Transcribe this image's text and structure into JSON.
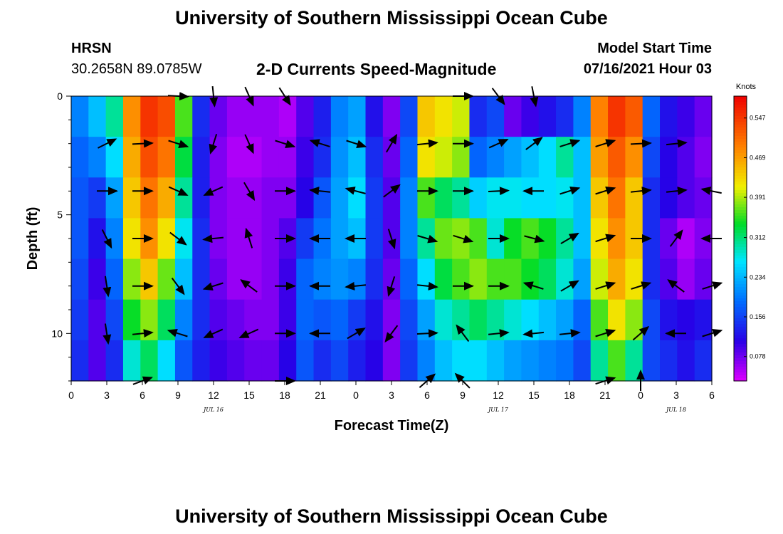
{
  "header": {
    "title": "University of Southern Mississippi Ocean Cube",
    "station": "HRSN",
    "coordinates": "30.2658N  89.0785W",
    "subtitle": "2-D Currents Speed-Magnitude",
    "model_start_label": "Model Start Time",
    "model_start_value": "07/16/2021 Hour 03"
  },
  "footer": {
    "title": "University of Southern Mississippi Ocean Cube"
  },
  "chart_data": {
    "type": "heatmap",
    "xlabel": "Forecast Time(Z)",
    "ylabel": "Depth (ft)",
    "colorbar_label": "Knots",
    "x_hours": [
      0,
      3,
      6,
      9,
      12,
      15,
      18,
      21,
      24,
      27,
      30,
      33,
      36,
      39,
      42,
      45,
      48,
      51,
      54
    ],
    "x_tick_labels": [
      "0",
      "3",
      "6",
      "9",
      "12",
      "15",
      "18",
      "21",
      "0",
      "3",
      "6",
      "9",
      "12",
      "15",
      "18",
      "21",
      "0",
      "3",
      "6"
    ],
    "date_labels": [
      {
        "label": "JUL 16",
        "hour": 12
      },
      {
        "label": "JUL 17",
        "hour": 36
      },
      {
        "label": "JUL 18",
        "hour": 51
      }
    ],
    "y_ticks": [
      0,
      5,
      10
    ],
    "y_tick_labels": [
      "0",
      "5",
      "10"
    ],
    "ylim": [
      0,
      12
    ],
    "xlim": [
      0,
      54
    ],
    "colorbar_ticks": [
      0.078,
      0.156,
      0.234,
      0.312,
      0.391,
      0.469,
      0.547
    ],
    "colorbar_tick_labels": [
      "0.078",
      "0.156",
      "0.234",
      "0.312",
      "0.391",
      "0.469",
      "0.547"
    ],
    "colorbar_range": [
      0.03,
      0.59
    ],
    "depth_levels": [
      0,
      2,
      4,
      6,
      8,
      10,
      12
    ],
    "time_hours": [
      0,
      1.5,
      3,
      4.5,
      6,
      7.5,
      9,
      10.5,
      12,
      13.5,
      15,
      16.5,
      18,
      19.5,
      21,
      22.5,
      24,
      25.5,
      27,
      28.5,
      30,
      31.5,
      33,
      34.5,
      36,
      37.5,
      39,
      40.5,
      42,
      43.5,
      45,
      46.5,
      48,
      49.5,
      51,
      52.5,
      54
    ],
    "speed_knots": [
      [
        0.2,
        0.24,
        0.3,
        0.48,
        0.55,
        0.53,
        0.36,
        0.14,
        0.08,
        0.06,
        0.06,
        0.06,
        0.05,
        0.09,
        0.13,
        0.2,
        0.22,
        0.12,
        0.07,
        0.16,
        0.44,
        0.42,
        0.4,
        0.14,
        0.16,
        0.08,
        0.1,
        0.12,
        0.14,
        0.2,
        0.49,
        0.55,
        0.52,
        0.18,
        0.12,
        0.1,
        0.08
      ],
      [
        0.18,
        0.2,
        0.26,
        0.46,
        0.53,
        0.5,
        0.33,
        0.13,
        0.07,
        0.05,
        0.05,
        0.06,
        0.06,
        0.1,
        0.14,
        0.21,
        0.24,
        0.14,
        0.08,
        0.18,
        0.42,
        0.4,
        0.38,
        0.18,
        0.2,
        0.22,
        0.24,
        0.26,
        0.3,
        0.24,
        0.47,
        0.52,
        0.48,
        0.16,
        0.11,
        0.09,
        0.07
      ],
      [
        0.17,
        0.15,
        0.22,
        0.44,
        0.5,
        0.46,
        0.3,
        0.13,
        0.07,
        0.06,
        0.06,
        0.07,
        0.07,
        0.11,
        0.17,
        0.22,
        0.26,
        0.15,
        0.09,
        0.2,
        0.36,
        0.32,
        0.3,
        0.25,
        0.27,
        0.27,
        0.26,
        0.26,
        0.27,
        0.24,
        0.44,
        0.5,
        0.44,
        0.14,
        0.11,
        0.09,
        0.08
      ],
      [
        0.17,
        0.12,
        0.2,
        0.42,
        0.48,
        0.42,
        0.27,
        0.14,
        0.07,
        0.06,
        0.06,
        0.07,
        0.09,
        0.15,
        0.19,
        0.22,
        0.24,
        0.15,
        0.09,
        0.2,
        0.3,
        0.37,
        0.38,
        0.36,
        0.28,
        0.34,
        0.36,
        0.34,
        0.3,
        0.24,
        0.42,
        0.48,
        0.44,
        0.14,
        0.08,
        0.05,
        0.07
      ],
      [
        0.16,
        0.1,
        0.18,
        0.38,
        0.44,
        0.37,
        0.24,
        0.14,
        0.08,
        0.06,
        0.06,
        0.07,
        0.1,
        0.18,
        0.2,
        0.21,
        0.2,
        0.14,
        0.08,
        0.18,
        0.26,
        0.33,
        0.36,
        0.38,
        0.36,
        0.36,
        0.34,
        0.32,
        0.28,
        0.22,
        0.4,
        0.46,
        0.42,
        0.14,
        0.09,
        0.06,
        0.08
      ],
      [
        0.15,
        0.09,
        0.16,
        0.34,
        0.38,
        0.32,
        0.2,
        0.14,
        0.09,
        0.08,
        0.07,
        0.07,
        0.1,
        0.18,
        0.17,
        0.18,
        0.15,
        0.12,
        0.07,
        0.16,
        0.22,
        0.28,
        0.3,
        0.32,
        0.3,
        0.28,
        0.26,
        0.24,
        0.22,
        0.18,
        0.36,
        0.42,
        0.38,
        0.16,
        0.12,
        0.11,
        0.12
      ],
      [
        0.14,
        0.09,
        0.14,
        0.28,
        0.32,
        0.26,
        0.17,
        0.13,
        0.1,
        0.09,
        0.08,
        0.08,
        0.11,
        0.17,
        0.14,
        0.16,
        0.13,
        0.11,
        0.07,
        0.15,
        0.2,
        0.24,
        0.26,
        0.26,
        0.24,
        0.22,
        0.21,
        0.2,
        0.19,
        0.16,
        0.3,
        0.36,
        0.3,
        0.16,
        0.14,
        0.12,
        0.14
      ]
    ],
    "vectors": [
      {
        "hour": 3,
        "depth": 2,
        "dx": 0.9,
        "dy": -0.45
      },
      {
        "hour": 3,
        "depth": 4,
        "dx": 1,
        "dy": 0
      },
      {
        "hour": 3,
        "depth": 6,
        "dx": 0.45,
        "dy": 0.9
      },
      {
        "hour": 3,
        "depth": 8,
        "dx": 0.15,
        "dy": 1
      },
      {
        "hour": 3,
        "depth": 10,
        "dx": 0.15,
        "dy": 1
      },
      {
        "hour": 6,
        "depth": 2,
        "dx": 1,
        "dy": -0.05
      },
      {
        "hour": 6,
        "depth": 4,
        "dx": 1,
        "dy": 0
      },
      {
        "hour": 6,
        "depth": 6,
        "dx": 1,
        "dy": 0
      },
      {
        "hour": 6,
        "depth": 8,
        "dx": 1,
        "dy": 0
      },
      {
        "hour": 6,
        "depth": 10,
        "dx": 1,
        "dy": -0.1
      },
      {
        "hour": 6,
        "depth": 12,
        "dx": 0.95,
        "dy": -0.35
      },
      {
        "hour": 9,
        "depth": 0,
        "dx": 1,
        "dy": 0.05
      },
      {
        "hour": 9,
        "depth": 2,
        "dx": 0.95,
        "dy": 0.3
      },
      {
        "hour": 9,
        "depth": 4,
        "dx": 0.9,
        "dy": 0.4
      },
      {
        "hour": 9,
        "depth": 6,
        "dx": 0.8,
        "dy": 0.6
      },
      {
        "hour": 9,
        "depth": 8,
        "dx": 0.6,
        "dy": 0.8
      },
      {
        "hour": 9,
        "depth": 10,
        "dx": -0.95,
        "dy": -0.3
      },
      {
        "hour": 12,
        "depth": 0,
        "dx": 0.1,
        "dy": 1
      },
      {
        "hour": 12,
        "depth": 2,
        "dx": -0.3,
        "dy": 0.95
      },
      {
        "hour": 12,
        "depth": 4,
        "dx": -0.9,
        "dy": 0.4
      },
      {
        "hour": 12,
        "depth": 6,
        "dx": -1,
        "dy": 0.1
      },
      {
        "hour": 12,
        "depth": 8,
        "dx": -0.95,
        "dy": 0.3
      },
      {
        "hour": 12,
        "depth": 10,
        "dx": -0.9,
        "dy": 0.4
      },
      {
        "hour": 15,
        "depth": 0,
        "dx": 0.4,
        "dy": 0.9
      },
      {
        "hour": 15,
        "depth": 2,
        "dx": 0.4,
        "dy": 0.9
      },
      {
        "hour": 15,
        "depth": 4,
        "dx": 0.5,
        "dy": 0.85
      },
      {
        "hour": 15,
        "depth": 6,
        "dx": -0.3,
        "dy": -0.95
      },
      {
        "hour": 15,
        "depth": 8,
        "dx": -0.8,
        "dy": -0.6
      },
      {
        "hour": 15,
        "depth": 10,
        "dx": -0.9,
        "dy": 0.4
      },
      {
        "hour": 18,
        "depth": 0,
        "dx": 0.55,
        "dy": 0.85
      },
      {
        "hour": 18,
        "depth": 2,
        "dx": 0.95,
        "dy": 0.3
      },
      {
        "hour": 18,
        "depth": 4,
        "dx": 1,
        "dy": 0
      },
      {
        "hour": 18,
        "depth": 6,
        "dx": 1,
        "dy": 0
      },
      {
        "hour": 18,
        "depth": 8,
        "dx": 1,
        "dy": 0
      },
      {
        "hour": 18,
        "depth": 10,
        "dx": 1,
        "dy": 0
      },
      {
        "hour": 18,
        "depth": 12,
        "dx": 1,
        "dy": 0
      },
      {
        "hour": 21,
        "depth": 2,
        "dx": -0.95,
        "dy": -0.3
      },
      {
        "hour": 21,
        "depth": 4,
        "dx": -1,
        "dy": -0.1
      },
      {
        "hour": 21,
        "depth": 6,
        "dx": -1,
        "dy": 0
      },
      {
        "hour": 21,
        "depth": 8,
        "dx": -1,
        "dy": 0
      },
      {
        "hour": 21,
        "depth": 10,
        "dx": -1,
        "dy": 0
      },
      {
        "hour": 24,
        "depth": 2,
        "dx": 0.95,
        "dy": 0.3
      },
      {
        "hour": 24,
        "depth": 4,
        "dx": -0.95,
        "dy": -0.25
      },
      {
        "hour": 24,
        "depth": 6,
        "dx": -1,
        "dy": 0
      },
      {
        "hour": 24,
        "depth": 8,
        "dx": -1,
        "dy": 0.1
      },
      {
        "hour": 24,
        "depth": 10,
        "dx": 0.85,
        "dy": -0.5
      },
      {
        "hour": 27,
        "depth": 2,
        "dx": 0.5,
        "dy": -0.85
      },
      {
        "hour": 27,
        "depth": 4,
        "dx": 0.8,
        "dy": -0.6
      },
      {
        "hour": 27,
        "depth": 6,
        "dx": 0.3,
        "dy": 0.95
      },
      {
        "hour": 27,
        "depth": 8,
        "dx": -0.3,
        "dy": 0.95
      },
      {
        "hour": 27,
        "depth": 10,
        "dx": -0.6,
        "dy": 0.8
      },
      {
        "hour": 30,
        "depth": 2,
        "dx": 1,
        "dy": -0.1
      },
      {
        "hour": 30,
        "depth": 4,
        "dx": 1,
        "dy": 0
      },
      {
        "hour": 30,
        "depth": 6,
        "dx": 1,
        "dy": 0.3
      },
      {
        "hour": 30,
        "depth": 8,
        "dx": 1,
        "dy": 0.1
      },
      {
        "hour": 30,
        "depth": 10,
        "dx": 1,
        "dy": -0.05
      },
      {
        "hour": 30,
        "depth": 12,
        "dx": 0.75,
        "dy": -0.65
      },
      {
        "hour": 33,
        "depth": 0,
        "dx": 1,
        "dy": 0
      },
      {
        "hour": 33,
        "depth": 2,
        "dx": 1,
        "dy": 0
      },
      {
        "hour": 33,
        "depth": 4,
        "dx": 1,
        "dy": 0
      },
      {
        "hour": 33,
        "depth": 6,
        "dx": 0.95,
        "dy": 0.3
      },
      {
        "hour": 33,
        "depth": 8,
        "dx": 1,
        "dy": 0
      },
      {
        "hour": 33,
        "depth": 10,
        "dx": -0.6,
        "dy": -0.8
      },
      {
        "hour": 33,
        "depth": 12,
        "dx": -0.7,
        "dy": -0.7
      },
      {
        "hour": 36,
        "depth": 0,
        "dx": 0.6,
        "dy": 0.8
      },
      {
        "hour": 36,
        "depth": 2,
        "dx": 0.9,
        "dy": -0.4
      },
      {
        "hour": 36,
        "depth": 4,
        "dx": 1,
        "dy": -0.05
      },
      {
        "hour": 36,
        "depth": 6,
        "dx": 1,
        "dy": 0
      },
      {
        "hour": 36,
        "depth": 8,
        "dx": 1,
        "dy": 0
      },
      {
        "hour": 36,
        "depth": 10,
        "dx": 1,
        "dy": -0.1
      },
      {
        "hour": 39,
        "depth": 0,
        "dx": 0.2,
        "dy": 1
      },
      {
        "hour": 39,
        "depth": 2,
        "dx": 0.8,
        "dy": -0.6
      },
      {
        "hour": 39,
        "depth": 4,
        "dx": -1,
        "dy": 0
      },
      {
        "hour": 39,
        "depth": 6,
        "dx": 0.95,
        "dy": 0.25
      },
      {
        "hour": 39,
        "depth": 8,
        "dx": -0.95,
        "dy": -0.3
      },
      {
        "hour": 39,
        "depth": 10,
        "dx": -1,
        "dy": 0.1
      },
      {
        "hour": 42,
        "depth": 2,
        "dx": 0.95,
        "dy": -0.3
      },
      {
        "hour": 42,
        "depth": 4,
        "dx": 0.95,
        "dy": -0.3
      },
      {
        "hour": 42,
        "depth": 6,
        "dx": 0.85,
        "dy": -0.5
      },
      {
        "hour": 42,
        "depth": 8,
        "dx": 0.85,
        "dy": -0.5
      },
      {
        "hour": 42,
        "depth": 10,
        "dx": 1,
        "dy": -0.1
      },
      {
        "hour": 45,
        "depth": 2,
        "dx": 0.95,
        "dy": -0.3
      },
      {
        "hour": 45,
        "depth": 4,
        "dx": 0.95,
        "dy": -0.3
      },
      {
        "hour": 45,
        "depth": 6,
        "dx": 0.95,
        "dy": -0.3
      },
      {
        "hour": 45,
        "depth": 8,
        "dx": 0.95,
        "dy": -0.3
      },
      {
        "hour": 45,
        "depth": 10,
        "dx": 0.95,
        "dy": -0.3
      },
      {
        "hour": 45,
        "depth": 12,
        "dx": 0.95,
        "dy": -0.3
      },
      {
        "hour": 48,
        "depth": 2,
        "dx": 1,
        "dy": -0.05
      },
      {
        "hour": 48,
        "depth": 4,
        "dx": 1,
        "dy": -0.1
      },
      {
        "hour": 48,
        "depth": 6,
        "dx": 1,
        "dy": 0
      },
      {
        "hour": 48,
        "depth": 8,
        "dx": 0.95,
        "dy": -0.3
      },
      {
        "hour": 48,
        "depth": 10,
        "dx": 0.75,
        "dy": -0.65
      },
      {
        "hour": 48,
        "depth": 12,
        "dx": 0,
        "dy": -1
      },
      {
        "hour": 51,
        "depth": 2,
        "dx": 1,
        "dy": -0.1
      },
      {
        "hour": 51,
        "depth": 4,
        "dx": 1,
        "dy": -0.1
      },
      {
        "hour": 51,
        "depth": 6,
        "dx": 0.6,
        "dy": -0.8
      },
      {
        "hour": 51,
        "depth": 8,
        "dx": -0.8,
        "dy": -0.6
      },
      {
        "hour": 51,
        "depth": 10,
        "dx": -1,
        "dy": 0
      },
      {
        "hour": 54,
        "depth": 4,
        "dx": -1,
        "dy": -0.2
      },
      {
        "hour": 54,
        "depth": 6,
        "dx": -1,
        "dy": 0
      },
      {
        "hour": 54,
        "depth": 8,
        "dx": 0.95,
        "dy": -0.3
      },
      {
        "hour": 54,
        "depth": 10,
        "dx": 0.95,
        "dy": -0.3
      }
    ]
  }
}
